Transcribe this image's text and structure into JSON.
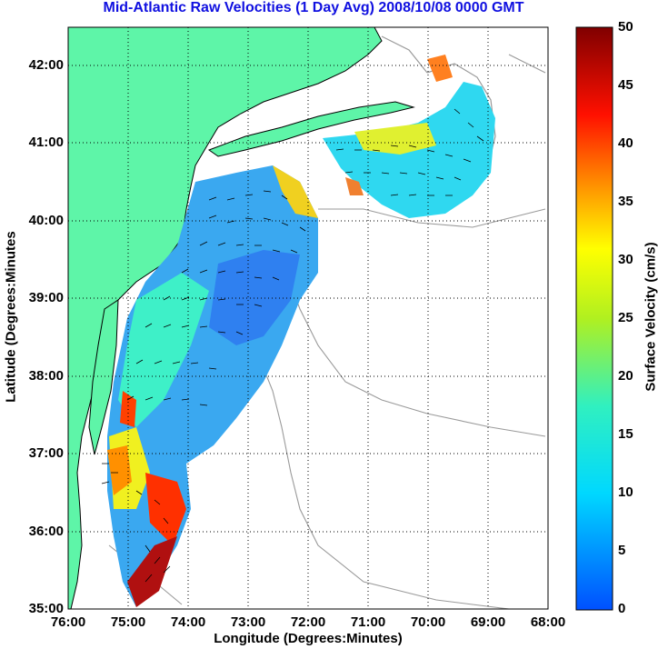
{
  "title": "Mid-Atlantic Raw Velocities (1 Day Avg) 2008/10/08 0000 GMT",
  "x_axis": {
    "label": "Longitude (Degrees:Minutes)",
    "ticks": [
      "76:00",
      "75:00",
      "74:00",
      "73:00",
      "72:00",
      "71:00",
      "70:00",
      "69:00",
      "68:00"
    ]
  },
  "y_axis": {
    "label": "Latitude (Degrees:Minutes",
    "ticks": [
      "42:00",
      "41:00",
      "40:00",
      "39:00",
      "38:00",
      "37:00",
      "36:00",
      "35:00"
    ]
  },
  "colorbar": {
    "label": "Surface Velocity (cm/s)",
    "ticks": [
      "50",
      "45",
      "40",
      "35",
      "30",
      "25",
      "20",
      "15",
      "10",
      "5",
      "0"
    ],
    "min": 0,
    "max": 50
  },
  "map": {
    "lon_range": [
      -76,
      -68
    ],
    "lat_range": [
      35,
      42.5
    ],
    "grid": "dotted",
    "land_color": "#5ef5a8",
    "coast_color": "#000000",
    "bathymetry_color": "#9a9a9a"
  }
}
